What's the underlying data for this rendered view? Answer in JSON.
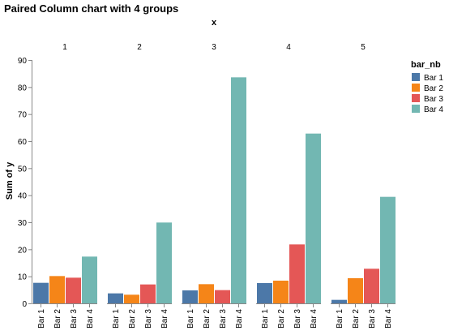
{
  "chart_data": {
    "type": "bar",
    "title": "Paired Column chart with 4 groups",
    "facet_label": "x",
    "facets": [
      "1",
      "2",
      "3",
      "4",
      "5"
    ],
    "categories": [
      "Bar 1",
      "Bar 2",
      "Bar 3",
      "Bar 4"
    ],
    "ylabel": "Sum of y",
    "ylim": [
      0,
      90
    ],
    "yticks": [
      0,
      10,
      20,
      30,
      40,
      50,
      60,
      70,
      80,
      90
    ],
    "grid": false,
    "legend": {
      "title": "bar_nb",
      "placement": "right",
      "items": [
        "Bar 1",
        "Bar 2",
        "Bar 3",
        "Bar 4"
      ]
    },
    "colors": [
      "#4c78a8",
      "#f58518",
      "#e45756",
      "#72b7b2"
    ],
    "groups": [
      {
        "facet": "1",
        "values": [
          7.6,
          10.1,
          9.5,
          17.3
        ]
      },
      {
        "facet": "2",
        "values": [
          3.7,
          3.2,
          7.0,
          29.9
        ]
      },
      {
        "facet": "3",
        "values": [
          4.8,
          7.1,
          4.9,
          83.6
        ]
      },
      {
        "facet": "4",
        "values": [
          7.5,
          8.4,
          21.8,
          62.8
        ]
      },
      {
        "facet": "5",
        "values": [
          1.3,
          9.3,
          12.8,
          39.4
        ]
      }
    ]
  }
}
